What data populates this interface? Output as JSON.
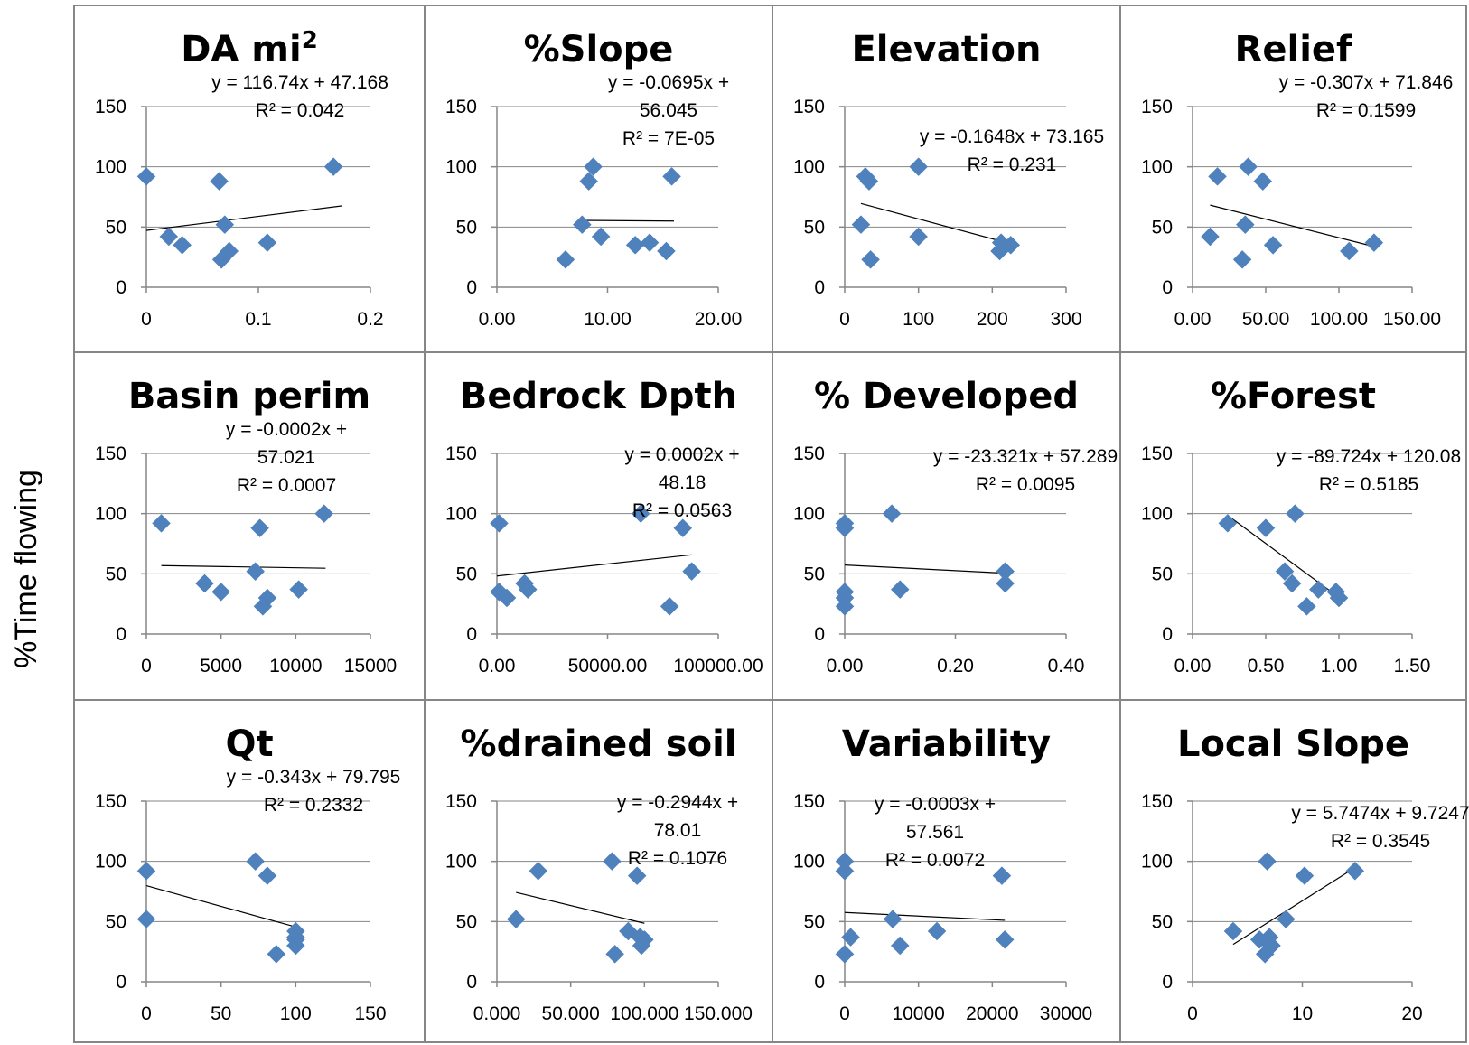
{
  "figure": {
    "ylabel": "%Time flowing"
  },
  "colors": {
    "marker": "#4F81BD",
    "gridline": "#868686",
    "axis": "#868686",
    "trendline": "#000000",
    "border": "#868686"
  },
  "chart_data": [
    {
      "type": "scatter",
      "title": "DA mi²",
      "xticks": [
        "0",
        "0.1",
        "0.2"
      ],
      "xlim": [
        0,
        0.2
      ],
      "yticks": [
        "0",
        "50",
        "100",
        "150"
      ],
      "ylim": [
        0,
        150
      ],
      "equation": [
        "y = 116.74x + 47.168",
        "R² = 0.042"
      ],
      "trend": {
        "slope": 116.74,
        "intercept": 47.168,
        "x_range": [
          0,
          0.175
        ]
      },
      "x": [
        0.0,
        0.02,
        0.032,
        0.065,
        0.067,
        0.07,
        0.074,
        0.108,
        0.167
      ],
      "y": [
        92,
        42,
        35,
        88,
        23,
        52,
        30,
        37,
        100
      ]
    },
    {
      "type": "scatter",
      "title": "%Slope",
      "xticks": [
        "0.00",
        "10.00",
        "20.00"
      ],
      "xlim": [
        0,
        20
      ],
      "yticks": [
        "0",
        "50",
        "100",
        "150"
      ],
      "ylim": [
        0,
        150
      ],
      "equation": [
        "y = -0.0695x +",
        "56.045",
        "R² = 7E-05"
      ],
      "trend": {
        "slope": -0.0695,
        "intercept": 56.045,
        "x_range": [
          7.5,
          16
        ]
      },
      "x": [
        6.2,
        7.7,
        8.3,
        8.7,
        9.4,
        12.5,
        13.8,
        15.3,
        15.8
      ],
      "y": [
        23,
        52,
        88,
        100,
        42,
        35,
        37,
        30,
        92
      ]
    },
    {
      "type": "scatter",
      "title": "Elevation",
      "xticks": [
        "0",
        "100",
        "200",
        "300"
      ],
      "xlim": [
        0,
        300
      ],
      "yticks": [
        "0",
        "50",
        "100",
        "150"
      ],
      "ylim": [
        0,
        150
      ],
      "equation": [
        "y = -0.1648x + 73.165",
        "R² = 0.231"
      ],
      "trend": {
        "slope": -0.1648,
        "intercept": 73.165,
        "x_range": [
          22,
          225
        ]
      },
      "x": [
        22,
        28,
        33,
        35,
        100,
        100,
        210,
        212,
        225
      ],
      "y": [
        52,
        92,
        88,
        23,
        100,
        42,
        30,
        37,
        35
      ]
    },
    {
      "type": "scatter",
      "title": "Relief",
      "xticks": [
        "0.00",
        "50.00",
        "100.00",
        "150.00"
      ],
      "xlim": [
        0,
        150
      ],
      "yticks": [
        "0",
        "50",
        "100",
        "150"
      ],
      "ylim": [
        0,
        150
      ],
      "equation": [
        "y = -0.307x + 71.846",
        "R² = 0.1599"
      ],
      "trend": {
        "slope": -0.307,
        "intercept": 71.846,
        "x_range": [
          12,
          125
        ]
      },
      "x": [
        12,
        17,
        34,
        36,
        38,
        48,
        55,
        107,
        124
      ],
      "y": [
        42,
        92,
        23,
        52,
        100,
        88,
        35,
        30,
        37
      ]
    },
    {
      "type": "scatter",
      "title": "Basin perim",
      "xticks": [
        "0",
        "5000",
        "10000",
        "15000"
      ],
      "xlim": [
        0,
        15000
      ],
      "yticks": [
        "0",
        "50",
        "100",
        "150"
      ],
      "ylim": [
        0,
        150
      ],
      "equation": [
        "y = -0.0002x +",
        "57.021",
        "R² = 0.0007"
      ],
      "trend": {
        "slope": -0.0002,
        "intercept": 57.021,
        "x_range": [
          1000,
          12000
        ]
      },
      "x": [
        1000,
        3900,
        5000,
        7300,
        7600,
        7800,
        8100,
        10200,
        11900
      ],
      "y": [
        92,
        42,
        35,
        52,
        88,
        23,
        30,
        37,
        100
      ]
    },
    {
      "type": "scatter",
      "title": "Bedrock Dpth",
      "xticks": [
        "0.00",
        "50000.00",
        "100000.00"
      ],
      "xlim": [
        0,
        100000
      ],
      "yticks": [
        "0",
        "50",
        "100",
        "150"
      ],
      "ylim": [
        0,
        150
      ],
      "equation": [
        "y = 0.0002x +",
        "48.18",
        "R² = 0.0563"
      ],
      "trend": {
        "slope": 0.0002,
        "intercept": 48.18,
        "x_range": [
          0,
          88000
        ]
      },
      "x": [
        1000,
        1000,
        4500,
        12500,
        14000,
        65000,
        78000,
        84000,
        88000
      ],
      "y": [
        92,
        35,
        30,
        42,
        37,
        100,
        23,
        88,
        52
      ]
    },
    {
      "type": "scatter",
      "title": "% Developed",
      "xticks": [
        "0.00",
        "0.20",
        "0.40"
      ],
      "xlim": [
        0,
        0.4
      ],
      "yticks": [
        "0",
        "50",
        "100",
        "150"
      ],
      "ylim": [
        0,
        150
      ],
      "equation": [
        "y = -23.321x + 57.289",
        "R² = 0.0095"
      ],
      "trend": {
        "slope": -23.321,
        "intercept": 57.289,
        "x_range": [
          0,
          0.29
        ]
      },
      "x": [
        0.0,
        0.0,
        0.0,
        0.0,
        0.0,
        0.085,
        0.1,
        0.29,
        0.29
      ],
      "y": [
        92,
        88,
        35,
        30,
        23,
        100,
        37,
        52,
        42
      ]
    },
    {
      "type": "scatter",
      "title": "%Forest",
      "xticks": [
        "0.00",
        "0.50",
        "1.00",
        "1.50"
      ],
      "xlim": [
        0,
        1.5
      ],
      "yticks": [
        "0",
        "50",
        "100",
        "150"
      ],
      "ylim": [
        0,
        150
      ],
      "equation": [
        "y = -89.724x + 120.08",
        "R² = 0.5185"
      ],
      "trend": {
        "slope": -89.724,
        "intercept": 120.08,
        "x_range": [
          0.24,
          1.0
        ]
      },
      "x": [
        0.24,
        0.5,
        0.63,
        0.68,
        0.7,
        0.78,
        0.86,
        0.98,
        1.0
      ],
      "y": [
        92,
        88,
        52,
        42,
        100,
        23,
        37,
        35,
        30
      ]
    },
    {
      "type": "scatter",
      "title": "Qt",
      "xticks": [
        "0",
        "50",
        "100",
        "150"
      ],
      "xlim": [
        0,
        150
      ],
      "yticks": [
        "0",
        "50",
        "100",
        "150"
      ],
      "ylim": [
        0,
        150
      ],
      "equation": [
        "y = -0.343x + 79.795",
        "R² = 0.2332"
      ],
      "trend": {
        "slope": -0.343,
        "intercept": 79.795,
        "x_range": [
          0,
          100
        ]
      },
      "x": [
        0,
        0,
        73,
        81,
        87,
        100,
        100,
        100,
        100
      ],
      "y": [
        92,
        52,
        100,
        88,
        23,
        42,
        37,
        35,
        30
      ]
    },
    {
      "type": "scatter",
      "title": "%drained soil",
      "xticks": [
        "0.000",
        "50.000",
        "100.000",
        "150.000"
      ],
      "xlim": [
        0,
        150
      ],
      "yticks": [
        "0",
        "50",
        "100",
        "150"
      ],
      "ylim": [
        0,
        150
      ],
      "equation": [
        "y = -0.2944x +",
        "78.01",
        "R² = 0.1076"
      ],
      "trend": {
        "slope": -0.2944,
        "intercept": 78.01,
        "x_range": [
          13,
          100
        ]
      },
      "x": [
        13,
        28,
        78,
        80,
        89,
        95,
        97,
        98,
        100
      ],
      "y": [
        52,
        92,
        100,
        23,
        42,
        88,
        37,
        30,
        35
      ]
    },
    {
      "type": "scatter",
      "title": "Variability",
      "xticks": [
        "0",
        "10000",
        "20000",
        "30000"
      ],
      "xlim": [
        0,
        30000
      ],
      "yticks": [
        "0",
        "50",
        "100",
        "150"
      ],
      "ylim": [
        0,
        150
      ],
      "equation": [
        "y = -0.0003x +",
        "57.561",
        "R² = 0.0072"
      ],
      "trend": {
        "slope": -0.0003,
        "intercept": 57.561,
        "x_range": [
          0,
          21700
        ]
      },
      "x": [
        0,
        0,
        0,
        800,
        6500,
        7500,
        12500,
        21300,
        21700
      ],
      "y": [
        100,
        92,
        23,
        37,
        52,
        30,
        42,
        88,
        35
      ]
    },
    {
      "type": "scatter",
      "title": "Local Slope",
      "xticks": [
        "0",
        "10",
        "20"
      ],
      "xlim": [
        0,
        20
      ],
      "yticks": [
        "0",
        "50",
        "100",
        "150"
      ],
      "ylim": [
        0,
        150
      ],
      "equation": [
        "y = 5.7474x + 9.7247",
        "R² = 0.3545"
      ],
      "trend": {
        "slope": 5.7474,
        "intercept": 9.7247,
        "x_range": [
          3.7,
          14.8
        ]
      },
      "x": [
        3.7,
        6.1,
        6.6,
        6.8,
        7.0,
        7.2,
        8.5,
        10.2,
        14.8
      ],
      "y": [
        42,
        35,
        23,
        100,
        37,
        30,
        52,
        88,
        92
      ]
    }
  ]
}
